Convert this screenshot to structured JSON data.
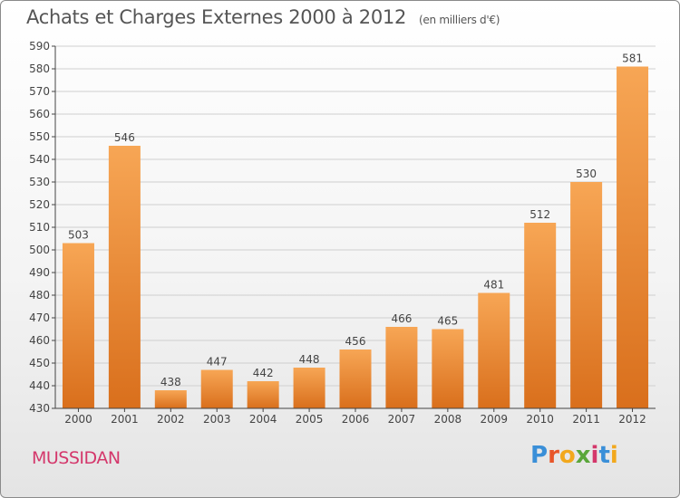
{
  "header": {
    "title": "Achats et Charges Externes 2000 à 2012",
    "unit": "(en milliers d'€)"
  },
  "footer": {
    "city": "MUSSIDAN",
    "logo_text": "Proxiti",
    "logo_colors": [
      "#3a8fd8",
      "#e8562a",
      "#f2a81d",
      "#5aa63a",
      "#d4376b",
      "#3a8fd8",
      "#f2a81d"
    ]
  },
  "colors": {
    "bar_top": "#f7a655",
    "bar_bottom": "#d96f1c",
    "grid": "#cfcfcf",
    "axis": "#444444"
  },
  "chart_data": {
    "type": "bar",
    "categories": [
      "2000",
      "2001",
      "2002",
      "2003",
      "2004",
      "2005",
      "2006",
      "2007",
      "2008",
      "2009",
      "2010",
      "2011",
      "2012"
    ],
    "values": [
      503,
      546,
      438,
      447,
      442,
      448,
      456,
      466,
      465,
      481,
      512,
      530,
      581
    ],
    "ylim": [
      430,
      590
    ],
    "yticks": [
      430,
      440,
      450,
      460,
      470,
      480,
      490,
      500,
      510,
      520,
      530,
      540,
      550,
      560,
      570,
      580,
      590
    ],
    "grid": true,
    "legend": "none"
  }
}
